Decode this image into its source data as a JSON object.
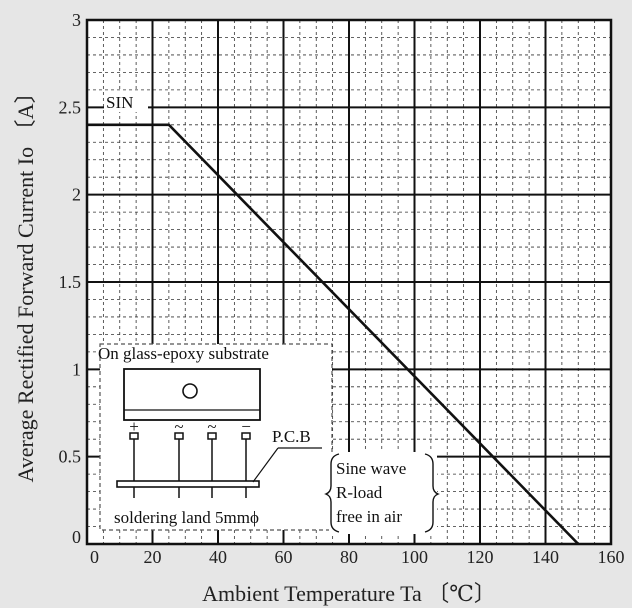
{
  "chart_data": {
    "type": "line",
    "title": "",
    "xlabel": "Ambient Temperature  Ta 〔℃〕",
    "ylabel": "Average Rectified Forward Current  Io 〔A〕",
    "xlim": [
      0,
      160
    ],
    "ylim": [
      0,
      3
    ],
    "xticks": [
      0,
      20,
      40,
      60,
      80,
      100,
      120,
      140,
      160
    ],
    "yticks": [
      0,
      0.5,
      1,
      1.5,
      2,
      2.5,
      3
    ],
    "xtick_labels": [
      "0",
      "20",
      "40",
      "60",
      "80",
      "100",
      "120",
      "140",
      "160"
    ],
    "ytick_labels": [
      "0",
      "0.5",
      "1",
      "1.5",
      "2",
      "2.5",
      "3"
    ],
    "grid": true,
    "series": [
      {
        "name": "SIN",
        "x": [
          0,
          25,
          150
        ],
        "y": [
          2.4,
          2.4,
          0
        ]
      }
    ],
    "annotations": {
      "series_label": "SIN",
      "inset_title": "On glass-epoxy substrate",
      "pcb_label": "P.C.B",
      "soldering_label": "soldering land 5mmϕ",
      "pin_marks": [
        "+",
        "~",
        "~",
        "−"
      ],
      "conditions": [
        "Sine wave",
        "R-load",
        "free in air"
      ]
    }
  }
}
